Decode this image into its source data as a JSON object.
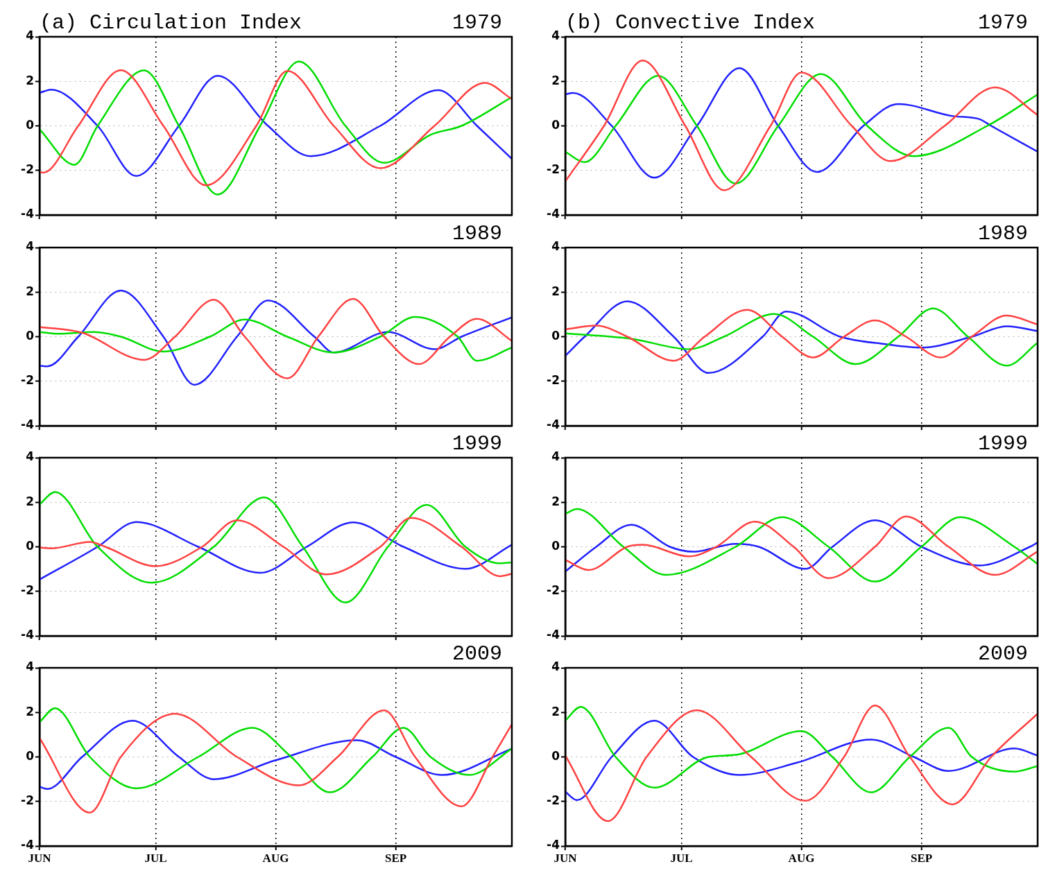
{
  "chart_data": [
    {
      "type": "line",
      "title": "1979",
      "subtitle": "(a) Circulation Index",
      "xlim": [
        "--06-01",
        "--10-01"
      ],
      "xticks": [
        {
          "value": "--06-01",
          "label": null
        },
        {
          "value": "--07-01",
          "label": null
        },
        {
          "value": "--08-01",
          "label": null
        },
        {
          "value": "--09-01",
          "label": null
        }
      ],
      "ylim": [
        -4,
        4
      ],
      "yticks": [
        -4,
        -2,
        0,
        2,
        4
      ],
      "grid": true,
      "marker": "none",
      "tick_labels": "y",
      "series": [
        {
          "color": "#ff4040",
          "x": [
            "--06-01",
            "--06-02",
            "--06-11",
            "--06-22",
            "--07-03",
            "--07-14",
            "--07-27",
            "--08-04",
            "--08-16",
            "--08-28",
            "--09-11",
            "--09-24",
            "--10-01"
          ],
          "values": [
            -2.07,
            -2.1,
            0,
            2.5,
            0,
            -2.67,
            0,
            2.47,
            0,
            -1.9,
            0,
            1.93,
            1.2
          ]
        },
        {
          "color": "#00dd00",
          "x": [
            "--06-01",
            "--06-10",
            "--06-16",
            "--06-28",
            "--07-07",
            "--07-17",
            "--07-28",
            "--08-07",
            "--08-19",
            "--08-29",
            "--09-10",
            "--09-18",
            "--10-01"
          ],
          "values": [
            -0.15,
            -1.75,
            0,
            2.49,
            0,
            -3.08,
            0,
            2.89,
            0,
            -1.66,
            -0.4,
            0,
            1.29
          ]
        },
        {
          "color": "#2020ff",
          "x": [
            "--06-01",
            "--06-04",
            "--06-16",
            "--06-26",
            "--07-07",
            "--07-17",
            "--07-30",
            "--08-10",
            "--08-28",
            "--09-12",
            "--09-22",
            "--10-01"
          ],
          "values": [
            1.48,
            1.63,
            0,
            -2.25,
            0,
            2.25,
            0,
            -1.36,
            0,
            1.6,
            0,
            -1.48
          ]
        }
      ]
    },
    {
      "type": "line",
      "title": "1979",
      "subtitle": "(b) Convective Index",
      "xlim": [
        "--06-01",
        "--10-01"
      ],
      "xticks": [
        {
          "value": "--06-01",
          "label": null
        },
        {
          "value": "--07-01",
          "label": null
        },
        {
          "value": "--08-01",
          "label": null
        },
        {
          "value": "--09-01",
          "label": null
        }
      ],
      "ylim": [
        -4,
        4
      ],
      "yticks": [
        -4,
        -2,
        0,
        2,
        4
      ],
      "grid": true,
      "marker": "none",
      "tick_labels": "y",
      "series": [
        {
          "color": "#ff4040",
          "x": [
            "--06-01",
            "--06-11",
            "--06-21",
            "--07-02",
            "--07-12",
            "--07-24",
            "--08-01",
            "--08-14",
            "--08-24",
            "--09-07",
            "--09-20",
            "--10-01"
          ],
          "values": [
            -2.49,
            0,
            2.93,
            0,
            -2.89,
            0,
            2.4,
            0,
            -1.58,
            0,
            1.73,
            0.49
          ]
        },
        {
          "color": "#00dd00",
          "x": [
            "--06-01",
            "--06-06",
            "--06-14",
            "--06-25",
            "--07-05",
            "--07-15",
            "--07-26",
            "--08-06",
            "--08-18",
            "--08-30",
            "--09-18",
            "--10-01"
          ],
          "values": [
            -1.16,
            -1.63,
            0,
            2.25,
            0,
            -2.59,
            0,
            2.33,
            0,
            -1.36,
            0,
            1.41
          ]
        },
        {
          "color": "#2020ff",
          "x": [
            "--06-01",
            "--06-03",
            "--06-13",
            "--06-24",
            "--07-05",
            "--07-16",
            "--07-26",
            "--08-05",
            "--08-17",
            "--08-26",
            "--09-09",
            "--09-16",
            "--09-19",
            "--10-01"
          ],
          "values": [
            1.41,
            1.48,
            0,
            -2.33,
            0,
            2.59,
            0,
            -2.07,
            0,
            0.98,
            0.44,
            0.3,
            0,
            -1.16
          ]
        }
      ]
    },
    {
      "type": "line",
      "title": "1989",
      "xlim": [
        "--06-01",
        "--10-01"
      ],
      "xticks": [
        {
          "value": "--06-01",
          "label": null
        },
        {
          "value": "--07-01",
          "label": null
        },
        {
          "value": "--08-01",
          "label": null
        },
        {
          "value": "--09-01",
          "label": null
        }
      ],
      "ylim": [
        -4,
        4
      ],
      "yticks": [
        -4,
        -2,
        0,
        2,
        4
      ],
      "grid": true,
      "marker": "none",
      "tick_labels": "y",
      "series": [
        {
          "color": "#ff4040",
          "x": [
            "--06-01",
            "--06-12",
            "--06-28",
            "--07-06",
            "--07-16",
            "--07-24",
            "--08-04",
            "--08-12",
            "--08-21",
            "--08-29",
            "--09-07",
            "--09-15",
            "--09-22",
            "--10-01"
          ],
          "values": [
            0.44,
            0.18,
            -1.04,
            0,
            1.66,
            0,
            -1.87,
            0,
            1.7,
            0,
            -1.23,
            0,
            0.8,
            -0.19
          ]
        },
        {
          "color": "#00dd00",
          "x": [
            "--06-01",
            "--06-06",
            "--06-15",
            "--06-22",
            "--07-03",
            "--07-15",
            "--07-24",
            "--08-04",
            "--08-16",
            "--08-28",
            "--09-06",
            "--09-17",
            "--09-22",
            "--10-01"
          ],
          "values": [
            0.21,
            0.13,
            0.21,
            0,
            -0.67,
            0,
            0.77,
            0,
            -0.71,
            0,
            0.89,
            0,
            -1.08,
            -0.49
          ]
        },
        {
          "color": "#2020ff",
          "x": [
            "--06-01",
            "--06-03",
            "--06-11",
            "--06-22",
            "--07-03",
            "--07-11",
            "--07-22",
            "--07-30",
            "--08-11",
            "--08-16",
            "--08-30",
            "--09-11",
            "--09-18",
            "--10-01"
          ],
          "values": [
            -1.3,
            -1.33,
            0,
            2.07,
            0,
            -2.16,
            0,
            1.63,
            0,
            -0.71,
            0.21,
            -0.56,
            0,
            0.87
          ]
        }
      ]
    },
    {
      "type": "line",
      "title": "1989",
      "xlim": [
        "--06-01",
        "--10-01"
      ],
      "xticks": [
        {
          "value": "--06-01",
          "label": null
        },
        {
          "value": "--07-01",
          "label": null
        },
        {
          "value": "--08-01",
          "label": null
        },
        {
          "value": "--09-01",
          "label": null
        }
      ],
      "ylim": [
        -4,
        4
      ],
      "yticks": [
        -4,
        -2,
        0,
        2,
        4
      ],
      "grid": true,
      "marker": "none",
      "tick_labels": "y",
      "series": [
        {
          "color": "#ff4040",
          "x": [
            "--06-01",
            "--06-09",
            "--06-17",
            "--06-29",
            "--07-07",
            "--07-18",
            "--07-27",
            "--08-04",
            "--08-12",
            "--08-20",
            "--08-28",
            "--09-06",
            "--09-14",
            "--09-23",
            "--10-01"
          ],
          "values": [
            0.33,
            0.5,
            0,
            -1.08,
            0,
            1.21,
            0,
            -0.93,
            0,
            0.73,
            0,
            -0.93,
            0,
            0.95,
            0.55
          ]
        },
        {
          "color": "#00dd00",
          "x": [
            "--06-01",
            "--06-18",
            "--07-03",
            "--07-12",
            "--07-25",
            "--08-04",
            "--08-15",
            "--08-26",
            "--09-04",
            "--09-13",
            "--09-23",
            "--10-01"
          ],
          "values": [
            0.15,
            -0.09,
            -0.56,
            0,
            1.02,
            0,
            -1.23,
            0,
            1.27,
            0,
            -1.3,
            -0.27
          ]
        },
        {
          "color": "#2020ff",
          "x": [
            "--06-01",
            "--06-06",
            "--06-17",
            "--06-29",
            "--07-08",
            "--07-22",
            "--07-28",
            "--08-11",
            "--08-23",
            "--09-01",
            "--09-14",
            "--09-23",
            "--10-01"
          ],
          "values": [
            -0.86,
            0,
            1.59,
            0,
            -1.63,
            0,
            1.13,
            0,
            -0.34,
            -0.49,
            0,
            0.47,
            0.25
          ]
        }
      ]
    },
    {
      "type": "line",
      "title": "1999",
      "xlim": [
        "--06-01",
        "--10-01"
      ],
      "xticks": [
        {
          "value": "--06-01",
          "label": null
        },
        {
          "value": "--07-01",
          "label": null
        },
        {
          "value": "--08-01",
          "label": null
        },
        {
          "value": "--09-01",
          "label": null
        }
      ],
      "ylim": [
        -4,
        4
      ],
      "yticks": [
        -4,
        -2,
        0,
        2,
        4
      ],
      "grid": true,
      "marker": "none",
      "tick_labels": "y",
      "series": [
        {
          "color": "#ff4040",
          "x": [
            "--06-01",
            "--06-04",
            "--06-14",
            "--06-18",
            "--07-01",
            "--07-13",
            "--07-22",
            "--08-03",
            "--08-14",
            "--08-28",
            "--09-05",
            "--09-18",
            "--09-28",
            "--10-01"
          ],
          "values": [
            -0.03,
            -0.07,
            0.22,
            0,
            -0.87,
            0,
            1.19,
            0,
            -1.24,
            0,
            1.3,
            0,
            -1.32,
            -1.21
          ]
        },
        {
          "color": "#00dd00",
          "x": [
            "--06-01",
            "--06-05",
            "--06-16",
            "--06-30",
            "--07-16",
            "--07-29",
            "--08-08",
            "--08-19",
            "--08-30",
            "--09-09",
            "--09-19",
            "--09-28",
            "--10-01"
          ],
          "values": [
            1.9,
            2.46,
            0,
            -1.61,
            0,
            2.22,
            0,
            -2.5,
            0,
            1.88,
            0,
            -0.74,
            -0.7
          ]
        },
        {
          "color": "#2020ff",
          "x": [
            "--06-01",
            "--06-16",
            "--06-26",
            "--07-12",
            "--07-28",
            "--08-09",
            "--08-21",
            "--09-03",
            "--09-19",
            "--10-01"
          ],
          "values": [
            -1.47,
            0,
            1.11,
            0,
            -1.17,
            0,
            1.1,
            0,
            -0.99,
            0.09
          ]
        }
      ]
    },
    {
      "type": "line",
      "title": "1999",
      "xlim": [
        "--06-01",
        "--10-01"
      ],
      "xticks": [
        {
          "value": "--06-01",
          "label": null
        },
        {
          "value": "--07-01",
          "label": null
        },
        {
          "value": "--08-01",
          "label": null
        },
        {
          "value": "--09-01",
          "label": null
        }
      ],
      "ylim": [
        -4,
        4
      ],
      "yticks": [
        -4,
        -2,
        0,
        2,
        4
      ],
      "grid": true,
      "marker": "none",
      "tick_labels": "y",
      "series": [
        {
          "color": "#ff4040",
          "x": [
            "--06-01",
            "--06-07",
            "--06-17",
            "--06-21",
            "--07-03",
            "--07-10",
            "--07-20",
            "--07-30",
            "--08-08",
            "--08-20",
            "--08-28",
            "--09-08",
            "--09-20",
            "--10-01"
          ],
          "values": [
            -0.59,
            -1.04,
            0,
            0.09,
            -0.43,
            0,
            1.13,
            0,
            -1.41,
            0,
            1.36,
            0,
            -1.26,
            -0.21
          ]
        },
        {
          "color": "#00dd00",
          "x": [
            "--06-01",
            "--06-04",
            "--06-16",
            "--06-27",
            "--07-15",
            "--07-27",
            "--08-08",
            "--08-20",
            "--09-01",
            "--09-11",
            "--09-25",
            "--10-01"
          ],
          "values": [
            1.48,
            1.7,
            0,
            -1.26,
            0,
            1.33,
            0,
            -1.56,
            0,
            1.33,
            0,
            -0.77
          ]
        },
        {
          "color": "#2020ff",
          "x": [
            "--06-01",
            "--06-09",
            "--06-18",
            "--06-28",
            "--07-04",
            "--07-15",
            "--07-21",
            "--08-02",
            "--08-09",
            "--08-20",
            "--09-01",
            "--09-16",
            "--09-29",
            "--10-01"
          ],
          "values": [
            -1.11,
            0,
            0.99,
            0,
            -0.22,
            0.13,
            0,
            -0.99,
            0,
            1.19,
            0,
            -0.84,
            0,
            0.19
          ]
        }
      ]
    },
    {
      "type": "line",
      "title": "2009",
      "xlim": [
        "--06-01",
        "--10-01"
      ],
      "xticks": [
        {
          "value": "--06-01",
          "label": "JUN"
        },
        {
          "value": "--07-01",
          "label": "JUL"
        },
        {
          "value": "--08-01",
          "label": "AUG"
        },
        {
          "value": "--09-01",
          "label": "SEP"
        }
      ],
      "ylim": [
        -4,
        4
      ],
      "yticks": [
        -4,
        -2,
        0,
        2,
        4
      ],
      "grid": true,
      "marker": "none",
      "series": [
        {
          "color": "#ff4040",
          "x": [
            "--06-01",
            "--06-14",
            "--06-22",
            "--07-06",
            "--07-22",
            "--08-07",
            "--08-17",
            "--08-29",
            "--09-06",
            "--09-18",
            "--09-26",
            "--10-01"
          ],
          "values": [
            0.84,
            -2.5,
            0,
            1.94,
            0,
            -1.28,
            0,
            2.09,
            0,
            -2.22,
            0,
            1.47
          ]
        },
        {
          "color": "#00dd00",
          "x": [
            "--06-01",
            "--06-05",
            "--06-14",
            "--06-26",
            "--07-12",
            "--07-26",
            "--08-05",
            "--08-15",
            "--08-26",
            "--09-03",
            "--09-10",
            "--09-20",
            "--10-01"
          ],
          "values": [
            1.56,
            2.19,
            0,
            -1.41,
            0,
            1.31,
            0,
            -1.59,
            0,
            1.31,
            0,
            -0.81,
            0.37
          ]
        },
        {
          "color": "#2020ff",
          "x": [
            "--06-01",
            "--06-03",
            "--06-12",
            "--06-25",
            "--07-07",
            "--07-16",
            "--08-01",
            "--08-22",
            "--09-01",
            "--09-13",
            "--10-01"
          ],
          "values": [
            -1.34,
            -1.44,
            0,
            1.63,
            0,
            -1,
            -0.15,
            0.75,
            0,
            -0.81,
            0.37
          ]
        }
      ]
    },
    {
      "type": "line",
      "title": "2009",
      "xlim": [
        "--06-01",
        "--10-01"
      ],
      "xticks": [
        {
          "value": "--06-01",
          "label": "JUN"
        },
        {
          "value": "--07-01",
          "label": "JUL"
        },
        {
          "value": "--08-01",
          "label": "AUG"
        },
        {
          "value": "--09-01",
          "label": "SEP"
        }
      ],
      "ylim": [
        -4,
        4
      ],
      "yticks": [
        -4,
        -2,
        0,
        2,
        4
      ],
      "grid": true,
      "marker": "none",
      "series": [
        {
          "color": "#ff4040",
          "x": [
            "--06-01",
            "--06-12",
            "--06-22",
            "--07-05",
            "--07-19",
            "--08-02",
            "--08-12",
            "--08-20",
            "--08-29",
            "--09-09",
            "--09-19",
            "--10-01"
          ],
          "values": [
            0.06,
            -2.88,
            0,
            2.09,
            0,
            -1.97,
            0,
            2.31,
            0,
            -2.13,
            0,
            1.94
          ]
        },
        {
          "color": "#00dd00",
          "x": [
            "--06-01",
            "--06-05",
            "--06-14",
            "--06-24",
            "--07-08",
            "--07-15",
            "--08-01",
            "--08-09",
            "--08-19",
            "--08-29",
            "--09-08",
            "--09-14",
            "--09-25",
            "--10-01"
          ],
          "values": [
            1.63,
            2.25,
            0,
            -1.38,
            0,
            0.09,
            1.16,
            0,
            -1.59,
            0,
            1.31,
            0,
            -0.66,
            -0.41
          ]
        },
        {
          "color": "#2020ff",
          "x": [
            "--06-01",
            "--06-04",
            "--06-13",
            "--06-24",
            "--07-04",
            "--07-16",
            "--07-31",
            "--08-19",
            "--08-30",
            "--09-08",
            "--09-25",
            "--10-01"
          ],
          "values": [
            -1.56,
            -1.94,
            0,
            1.63,
            0,
            -0.81,
            -0.25,
            0.78,
            0,
            -0.63,
            0.38,
            0.06
          ]
        }
      ]
    }
  ]
}
